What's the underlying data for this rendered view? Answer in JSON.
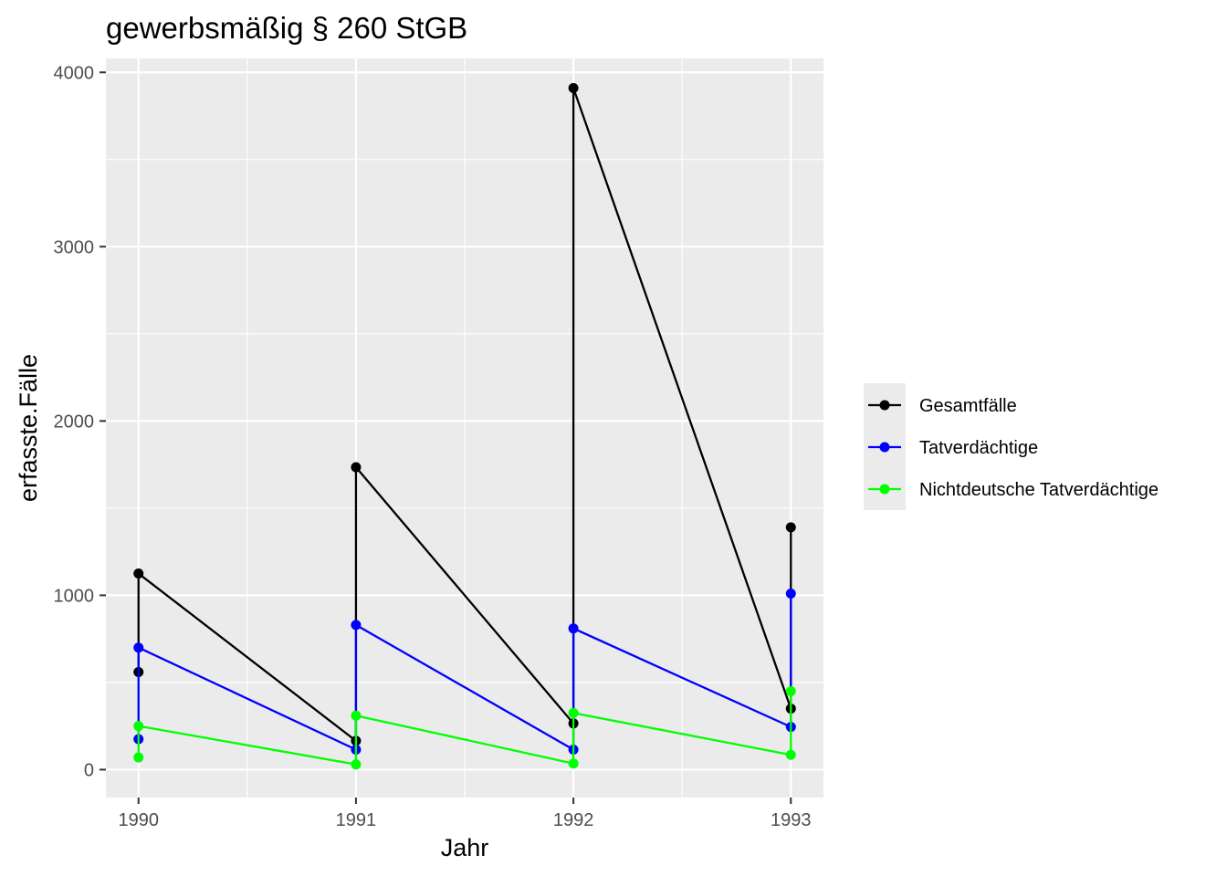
{
  "chart_data": {
    "type": "line",
    "title": "gewerbsmäßig § 260 StGB",
    "xlabel": "Jahr",
    "ylabel": "erfasste.Fälle",
    "xlim": [
      1989.85,
      1993.15
    ],
    "ylim": [
      -160,
      4080
    ],
    "x_ticks": [
      1990,
      1991,
      1992,
      1993
    ],
    "x_tick_labels": [
      "1990",
      "1991",
      "1992",
      "1993"
    ],
    "y_ticks": [
      0,
      1000,
      2000,
      3000,
      4000
    ],
    "y_tick_labels": [
      "0",
      "1000",
      "2000",
      "3000",
      "4000"
    ],
    "grid": true,
    "legend_position": "right",
    "series": [
      {
        "name": "Gesamtfälle",
        "color": "#000000",
        "points": [
          {
            "x": 1990,
            "y": 560
          },
          {
            "x": 1990,
            "y": 1125
          },
          {
            "x": 1991,
            "y": 165
          },
          {
            "x": 1991,
            "y": 1735
          },
          {
            "x": 1992,
            "y": 265
          },
          {
            "x": 1992,
            "y": 3910
          },
          {
            "x": 1993,
            "y": 350
          },
          {
            "x": 1993,
            "y": 1390
          }
        ]
      },
      {
        "name": "Tatverdächtige",
        "color": "#0000ff",
        "points": [
          {
            "x": 1990,
            "y": 175
          },
          {
            "x": 1990,
            "y": 700
          },
          {
            "x": 1991,
            "y": 115
          },
          {
            "x": 1991,
            "y": 830
          },
          {
            "x": 1992,
            "y": 115
          },
          {
            "x": 1992,
            "y": 810
          },
          {
            "x": 1993,
            "y": 245
          },
          {
            "x": 1993,
            "y": 1010
          }
        ]
      },
      {
        "name": "Nichtdeutsche Tatverdächtige",
        "color": "#00ff00",
        "points": [
          {
            "x": 1990,
            "y": 70
          },
          {
            "x": 1990,
            "y": 250
          },
          {
            "x": 1991,
            "y": 30
          },
          {
            "x": 1991,
            "y": 310
          },
          {
            "x": 1992,
            "y": 35
          },
          {
            "x": 1992,
            "y": 325
          },
          {
            "x": 1993,
            "y": 85
          },
          {
            "x": 1993,
            "y": 450
          }
        ]
      }
    ]
  }
}
